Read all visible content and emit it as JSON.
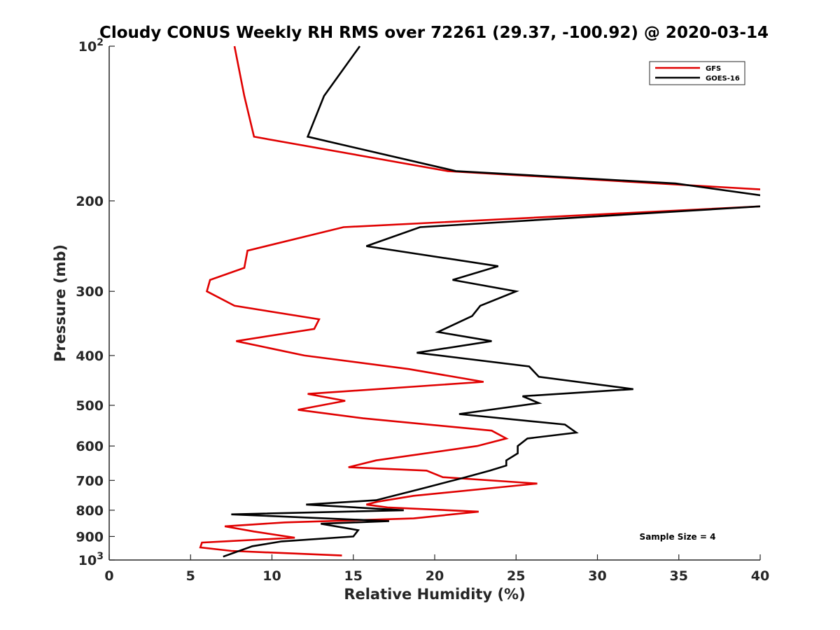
{
  "chart_data": {
    "type": "line",
    "title": "Cloudy CONUS Weekly RH RMS over 72261 (29.37, -100.92) @ 2020-03-14",
    "xlabel": "Relative Humidity (%)",
    "ylabel": "Pressure (mb)",
    "xlim": [
      0,
      40
    ],
    "ylim": [
      1000,
      100
    ],
    "yscale": "log",
    "y_reversed": true,
    "grid": false,
    "legend_position": "top-right",
    "x_ticks": [
      0,
      5,
      10,
      15,
      20,
      25,
      30,
      35,
      40
    ],
    "y_ticks": [
      {
        "value": 100,
        "base": "10",
        "exp": "2"
      },
      {
        "value": 200,
        "label": "200"
      },
      {
        "value": 300,
        "label": "300"
      },
      {
        "value": 400,
        "label": "400"
      },
      {
        "value": 500,
        "label": "500"
      },
      {
        "value": 600,
        "label": "600"
      },
      {
        "value": 700,
        "label": "700"
      },
      {
        "value": 800,
        "label": "800"
      },
      {
        "value": 900,
        "label": "900"
      },
      {
        "value": 1000,
        "base": "10",
        "exp": "3"
      }
    ],
    "annotation": "Sample Size = 4",
    "series": [
      {
        "name": "GFS",
        "color": "#e00000",
        "points": [
          [
            7.7,
            100
          ],
          [
            8.3,
            125
          ],
          [
            8.9,
            150
          ],
          [
            20.8,
            175
          ],
          [
            40,
            190
          ],
          [
            null,
            null
          ],
          [
            40,
            205
          ],
          [
            14.4,
            225
          ],
          [
            8.5,
            250
          ],
          [
            8.3,
            270
          ],
          [
            6.2,
            285
          ],
          [
            6.0,
            300
          ],
          [
            7.7,
            320
          ],
          [
            12.9,
            340
          ],
          [
            12.6,
            355
          ],
          [
            7.8,
            375
          ],
          [
            12.0,
            400
          ],
          [
            18.4,
            425
          ],
          [
            23.0,
            450
          ],
          [
            12.2,
            475
          ],
          [
            14.5,
            490
          ],
          [
            11.6,
            510
          ],
          [
            15.6,
            530
          ],
          [
            23.5,
            560
          ],
          [
            24.4,
            580
          ],
          [
            22.6,
            600
          ],
          [
            16.4,
            640
          ],
          [
            14.7,
            660
          ],
          [
            19.5,
            670
          ],
          [
            20.5,
            690
          ],
          [
            26.3,
            710
          ],
          [
            18.7,
            750
          ],
          [
            16.5,
            770
          ],
          [
            15.8,
            780
          ],
          [
            17.1,
            790
          ],
          [
            22.7,
            805
          ],
          [
            18.7,
            830
          ],
          [
            10.8,
            845
          ],
          [
            7.1,
            860
          ],
          [
            8.9,
            880
          ],
          [
            11.4,
            905
          ],
          [
            5.7,
            925
          ],
          [
            5.6,
            945
          ],
          [
            7.5,
            960
          ],
          [
            14.3,
            980
          ]
        ]
      },
      {
        "name": "GOES-16",
        "color": "#000000",
        "points": [
          [
            15.4,
            100
          ],
          [
            13.2,
            125
          ],
          [
            12.2,
            150
          ],
          [
            21.3,
            175
          ],
          [
            34.8,
            185
          ],
          [
            40,
            195
          ],
          [
            null,
            null
          ],
          [
            40,
            205
          ],
          [
            19.1,
            225
          ],
          [
            15.8,
            245
          ],
          [
            23.9,
            268
          ],
          [
            21.1,
            285
          ],
          [
            25.0,
            300
          ],
          [
            22.8,
            320
          ],
          [
            22.3,
            335
          ],
          [
            20.2,
            360
          ],
          [
            23.5,
            375
          ],
          [
            18.9,
            395
          ],
          [
            25.8,
            420
          ],
          [
            26.4,
            440
          ],
          [
            32.2,
            465
          ],
          [
            25.4,
            480
          ],
          [
            26.4,
            495
          ],
          [
            21.5,
            520
          ],
          [
            28.0,
            545
          ],
          [
            28.7,
            565
          ],
          [
            25.7,
            580
          ],
          [
            25.1,
            600
          ],
          [
            25.1,
            620
          ],
          [
            24.4,
            640
          ],
          [
            24.4,
            655
          ],
          [
            23.4,
            670
          ],
          [
            21.9,
            690
          ],
          [
            19.3,
            725
          ],
          [
            16.4,
            765
          ],
          [
            12.1,
            780
          ],
          [
            18.1,
            800
          ],
          [
            7.5,
            815
          ],
          [
            17.2,
            840
          ],
          [
            13.0,
            850
          ],
          [
            15.3,
            875
          ],
          [
            15.0,
            900
          ],
          [
            10.6,
            920
          ],
          [
            8.8,
            940
          ],
          [
            7.0,
            985
          ]
        ]
      }
    ]
  }
}
